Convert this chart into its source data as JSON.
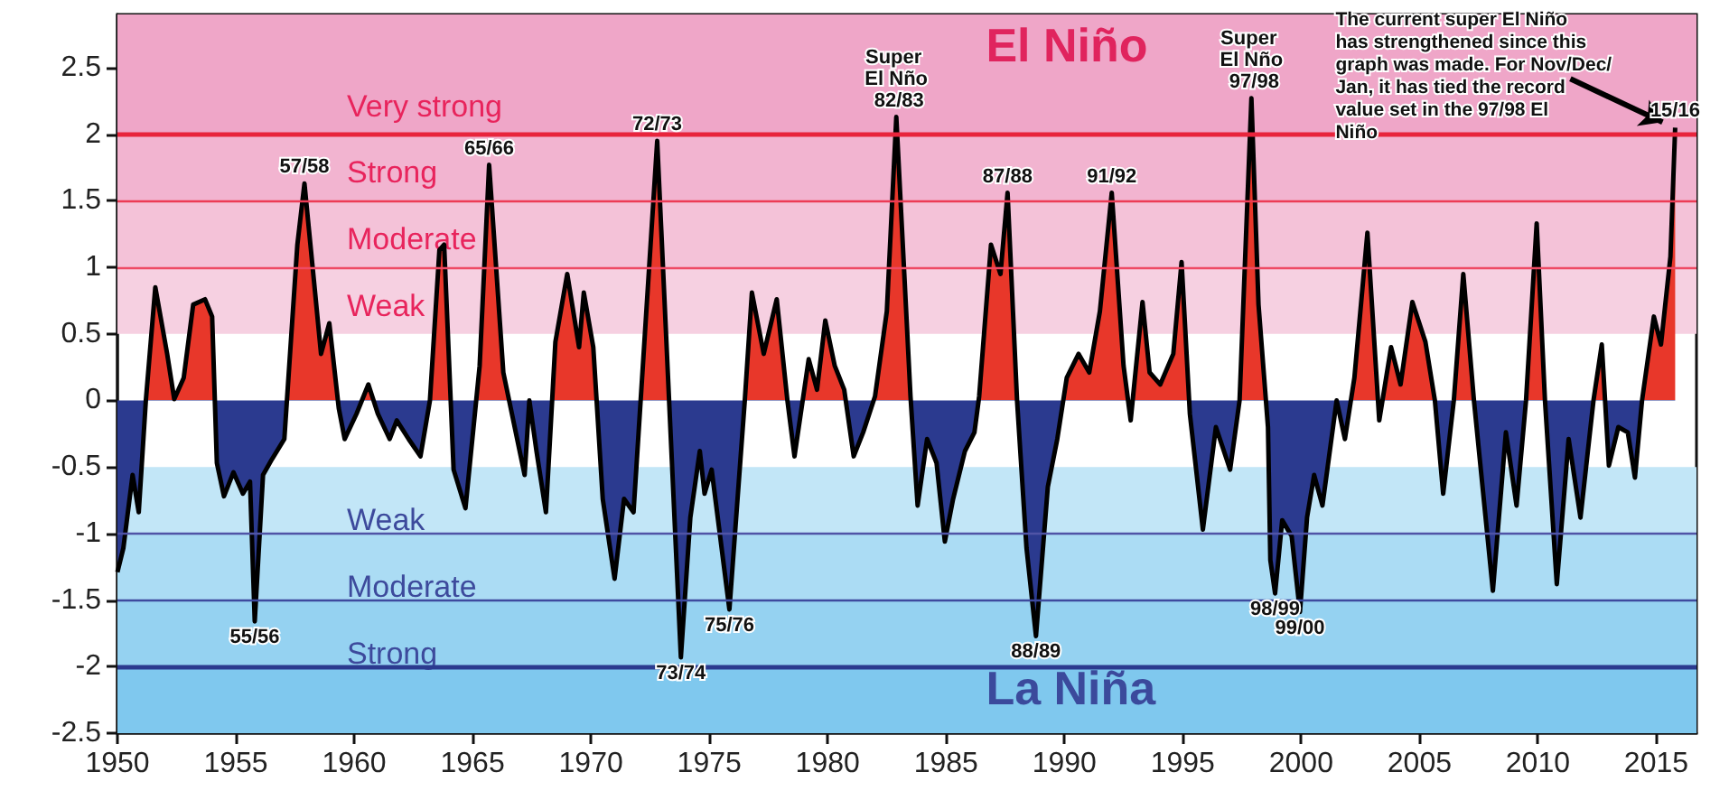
{
  "chart_data": {
    "type": "area",
    "xlim": [
      1950,
      2016.7
    ],
    "xticks": [
      1950,
      1955,
      1960,
      1965,
      1970,
      1975,
      1980,
      1985,
      1990,
      1995,
      2000,
      2005,
      2010,
      2015
    ],
    "ylim": [
      -2.5,
      2.9
    ],
    "yticks": [
      -2.5,
      -2,
      -1.5,
      -1,
      -0.5,
      0,
      0.5,
      1,
      1.5,
      2,
      2.5
    ],
    "series": [
      {
        "color": "#e8372a",
        "x": [
          1950.0,
          1950.25,
          1950.64,
          1950.9,
          1951.2,
          1951.6,
          1952.1,
          1952.4,
          1952.8,
          1953.2,
          1953.7,
          1954.0,
          1954.2,
          1954.5,
          1954.9,
          1955.3,
          1955.6,
          1955.8,
          1956.15,
          1956.5,
          1957.05,
          1957.6,
          1957.9,
          1958.3,
          1958.6,
          1958.95,
          1959.35,
          1959.6,
          1960.1,
          1960.6,
          1961.0,
          1961.5,
          1961.8,
          1962.3,
          1962.8,
          1963.2,
          1963.6,
          1963.8,
          1964.2,
          1964.7,
          1965.3,
          1965.7,
          1966.3,
          1967.2,
          1967.4,
          1967.7,
          1968.1,
          1968.5,
          1969.0,
          1969.5,
          1969.7,
          1970.1,
          1970.5,
          1971.0,
          1971.4,
          1971.8,
          1972.8,
          1973.8,
          1974.2,
          1974.6,
          1974.8,
          1975.1,
          1975.85,
          1976.5,
          1976.8,
          1977.3,
          1977.85,
          1978.3,
          1978.6,
          1979.2,
          1979.55,
          1979.9,
          1980.3,
          1980.7,
          1981.1,
          1981.5,
          1982.0,
          1982.5,
          1982.9,
          1983.5,
          1983.8,
          1984.2,
          1984.6,
          1984.95,
          1985.3,
          1985.8,
          1986.2,
          1986.4,
          1986.9,
          1987.3,
          1987.6,
          1988.0,
          1988.4,
          1988.8,
          1989.3,
          1989.7,
          1990.1,
          1990.6,
          1991.05,
          1991.5,
          1992.0,
          1992.5,
          1992.8,
          1993.3,
          1993.6,
          1994.05,
          1994.6,
          1994.95,
          1995.3,
          1995.85,
          1996.4,
          1997.0,
          1997.4,
          1997.9,
          1998.2,
          1998.6,
          1998.7,
          1998.9,
          1999.2,
          1999.6,
          1999.95,
          2000.25,
          2000.55,
          2000.9,
          2001.5,
          2001.85,
          2002.25,
          2002.8,
          2003.3,
          2003.8,
          2004.2,
          2004.7,
          2005.25,
          2005.65,
          2006.0,
          2006.45,
          2006.85,
          2007.3,
          2008.1,
          2008.65,
          2009.1,
          2009.5,
          2009.95,
          2010.3,
          2010.8,
          2011.3,
          2011.8,
          2012.35,
          2012.7,
          2013.0,
          2013.4,
          2013.8,
          2014.1,
          2014.4,
          2014.9,
          2015.2,
          2015.6,
          2015.8
        ],
        "values": [
          -1.29,
          -1.11,
          -0.56,
          -0.84,
          0,
          0.85,
          0.35,
          0.01,
          0.17,
          0.72,
          0.76,
          0.63,
          -0.47,
          -0.72,
          -0.54,
          -0.7,
          -0.61,
          -1.66,
          -0.56,
          -0.45,
          -0.29,
          1.17,
          1.63,
          0.9,
          0.35,
          0.58,
          -0.06,
          -0.29,
          -0.1,
          0.12,
          -0.1,
          -0.29,
          -0.15,
          -0.29,
          -0.42,
          0,
          1.13,
          1.17,
          -0.52,
          -0.81,
          0.26,
          1.77,
          0.21,
          -0.56,
          0,
          -0.38,
          -0.84,
          0.44,
          0.95,
          0.4,
          0.81,
          0.4,
          -0.74,
          -1.34,
          -0.74,
          -0.84,
          1.95,
          -1.93,
          -0.88,
          -0.38,
          -0.7,
          -0.52,
          -1.57,
          0,
          0.81,
          0.35,
          0.76,
          0,
          -0.42,
          0.31,
          0.08,
          0.6,
          0.26,
          0.08,
          -0.42,
          -0.24,
          0.03,
          0.67,
          2.13,
          0.03,
          -0.79,
          -0.29,
          -0.47,
          -1.06,
          -0.74,
          -0.38,
          -0.24,
          0.03,
          1.17,
          0.95,
          1.56,
          0,
          -1.11,
          -1.77,
          -0.65,
          -0.29,
          0.17,
          0.35,
          0.21,
          0.67,
          1.56,
          0.26,
          -0.15,
          0.74,
          0.21,
          0.12,
          0.35,
          1.04,
          -0.1,
          -0.97,
          -0.2,
          -0.52,
          0,
          2.27,
          0.72,
          -0.2,
          -1.2,
          -1.45,
          -0.9,
          -1.02,
          -1.59,
          -0.88,
          -0.56,
          -0.79,
          0,
          -0.29,
          0.17,
          1.26,
          -0.15,
          0.4,
          0.12,
          0.74,
          0.44,
          0,
          -0.7,
          0,
          0.95,
          0,
          -1.43,
          -0.24,
          -0.79,
          0,
          1.33,
          0,
          -1.38,
          -0.29,
          -0.88,
          0,
          0.42,
          -0.49,
          -0.2,
          -0.24,
          -0.58,
          0,
          0.63,
          0.42,
          1.08,
          2.05
        ]
      }
    ],
    "bands": [
      {
        "axis": "y",
        "from": 0.5,
        "to": 1,
        "label": "Weak",
        "color": "#f6d0e1"
      },
      {
        "axis": "y",
        "from": 1,
        "to": 1.5,
        "label": "Moderate",
        "color": "#f4c2d8"
      },
      {
        "axis": "y",
        "from": 1.5,
        "to": 2,
        "label": "Strong",
        "color": "#f2b4d0"
      },
      {
        "axis": "y",
        "from": 2,
        "to": 2.9,
        "label": "Very strong",
        "color": "#efa6c8"
      },
      {
        "axis": "y",
        "from": -0.5,
        "to": -1,
        "label": "Weak",
        "color": "#c2e6f7"
      },
      {
        "axis": "y",
        "from": -1,
        "to": -1.5,
        "label": "Moderate",
        "color": "#abdcf4"
      },
      {
        "axis": "y",
        "from": -1.5,
        "to": -2,
        "label": "Strong",
        "color": "#95d2f1"
      },
      {
        "axis": "y",
        "from": -2,
        "to": -2.5,
        "color": "#7fc8ee"
      }
    ],
    "ref_lines": [
      {
        "axis": "y",
        "value": 2,
        "color": "#e8243c"
      },
      {
        "axis": "y",
        "value": 1.5,
        "color": "#ec3c55"
      },
      {
        "axis": "y",
        "value": 1,
        "color": "#ee4a64"
      },
      {
        "axis": "y",
        "value": -1,
        "color": "#5054a6"
      },
      {
        "axis": "y",
        "value": -1.5,
        "color": "#3e4a9e"
      },
      {
        "axis": "y",
        "value": -2,
        "color": "#2b3a8f"
      }
    ],
    "annotations": [
      "El Niño",
      "La Niña",
      {
        "text": "57/58",
        "x": 1957.9,
        "y": 1.63
      },
      {
        "text": "55/56",
        "x": 1955.8,
        "y": -1.66
      },
      {
        "text": "65/66",
        "x": 1965.7,
        "y": 1.77
      },
      {
        "text": "72/73",
        "x": 1972.8,
        "y": 1.95
      },
      {
        "text": "73/74",
        "x": 1973.8,
        "y": -1.93
      },
      {
        "text": "75/76",
        "x": 1975.85,
        "y": -1.57
      },
      {
        "text": "Super El Nño 82/83",
        "x": 1982.9,
        "y": 2.13
      },
      {
        "text": "87/88",
        "x": 1987.6,
        "y": 1.56
      },
      {
        "text": "88/89",
        "x": 1988.8,
        "y": -1.77
      },
      {
        "text": "91/92",
        "x": 1992.0,
        "y": 1.56
      },
      {
        "text": "Super El Nño 97/98",
        "x": 1997.9,
        "y": 2.27
      },
      {
        "text": "98/99",
        "x": 1998.9,
        "y": -1.45
      },
      {
        "text": "99/00",
        "x": 1999.95,
        "y": -1.59
      },
      {
        "text": "15/16",
        "x": 2015.8,
        "y": 2.05
      },
      {
        "text": "The current super El Niño has strengthened since this graph was made. For Nov/Dec/Jan, it has tied the record value set in the 97/98 El Niño",
        "x": 2015.8,
        "y": 2.05
      }
    ]
  }
}
